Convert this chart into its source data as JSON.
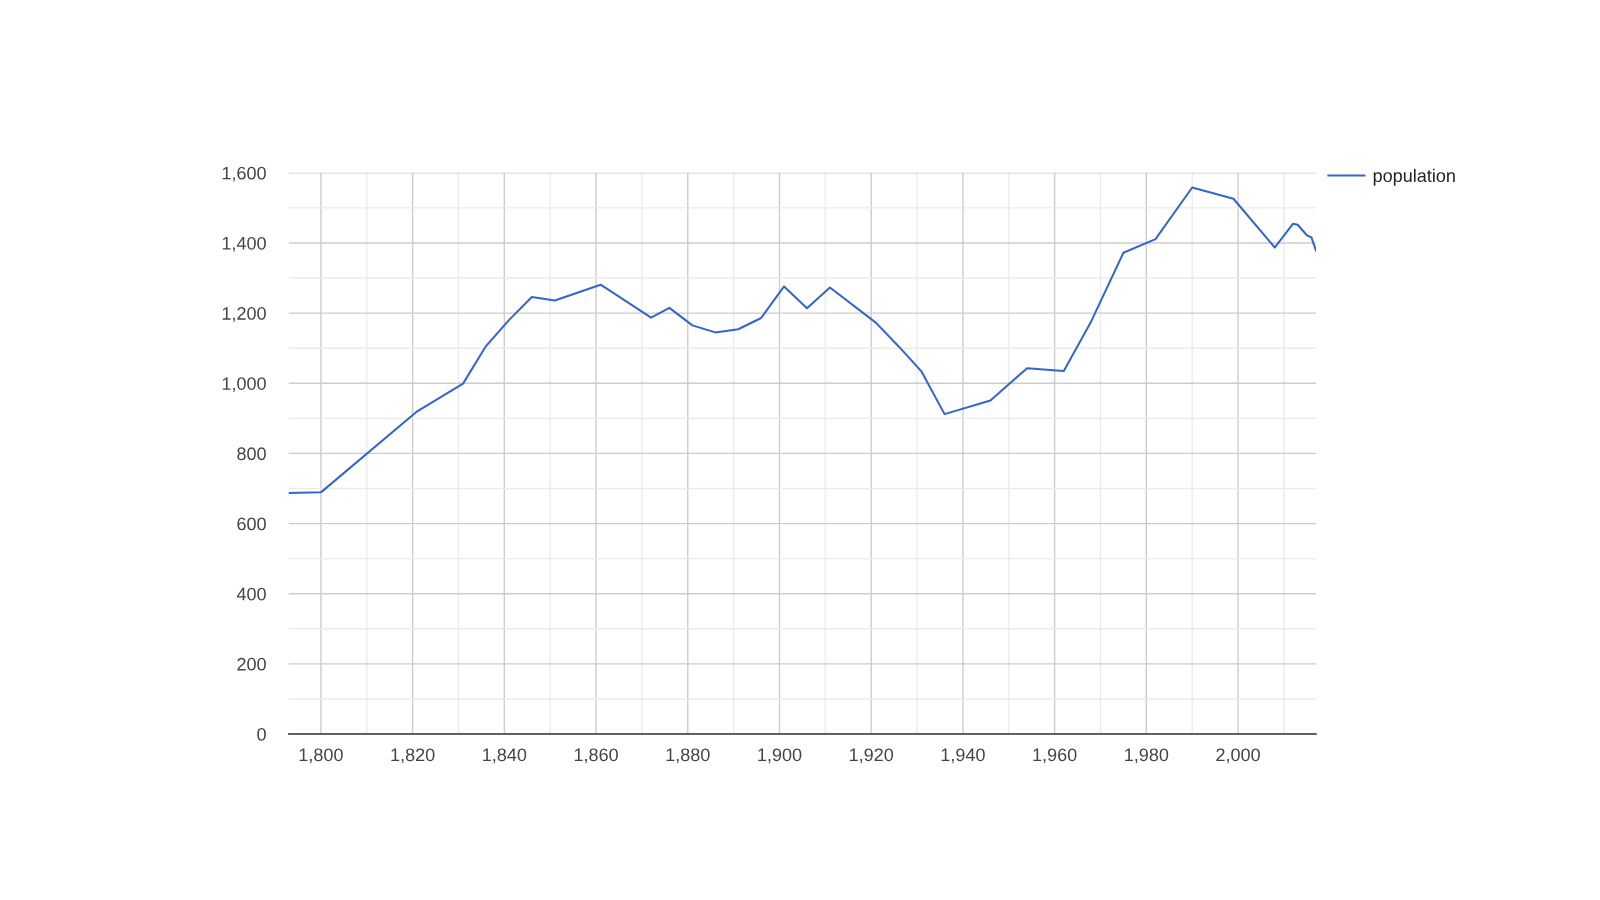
{
  "chart_data": {
    "type": "line",
    "x": [
      1793,
      1800,
      1821,
      1831,
      1836,
      1841,
      1846,
      1851,
      1861,
      1872,
      1876,
      1881,
      1886,
      1891,
      1896,
      1901,
      1906,
      1911,
      1921,
      1926,
      1931,
      1936,
      1946,
      1954,
      1962,
      1968,
      1975,
      1982,
      1990,
      1999,
      2008,
      2012,
      2013,
      2015,
      2016,
      2017
    ],
    "series": [
      {
        "name": "population",
        "color": "#3366cc",
        "values": [
          687,
          689,
          920,
          999,
          1106,
          1180,
          1246,
          1236,
          1281,
          1187,
          1215,
          1165,
          1145,
          1154,
          1186,
          1276,
          1214,
          1273,
          1173,
          1105,
          1033,
          912,
          951,
          1043,
          1035,
          1177,
          1372,
          1411,
          1558,
          1526,
          1387,
          1455,
          1452,
          1422,
          1416,
          1378
        ]
      }
    ],
    "xlim": [
      1793,
      2017
    ],
    "ylim": [
      0,
      1600
    ],
    "xticks": [
      {
        "value": 1800,
        "label": "1,800"
      },
      {
        "value": 1810,
        "label": null
      },
      {
        "value": 1820,
        "label": "1,820"
      },
      {
        "value": 1830,
        "label": null
      },
      {
        "value": 1840,
        "label": "1,840"
      },
      {
        "value": 1850,
        "label": null
      },
      {
        "value": 1860,
        "label": "1,860"
      },
      {
        "value": 1870,
        "label": null
      },
      {
        "value": 1880,
        "label": "1,880"
      },
      {
        "value": 1890,
        "label": null
      },
      {
        "value": 1900,
        "label": "1,900"
      },
      {
        "value": 1910,
        "label": null
      },
      {
        "value": 1920,
        "label": "1,920"
      },
      {
        "value": 1930,
        "label": null
      },
      {
        "value": 1940,
        "label": "1,940"
      },
      {
        "value": 1950,
        "label": null
      },
      {
        "value": 1960,
        "label": "1,960"
      },
      {
        "value": 1970,
        "label": null
      },
      {
        "value": 1980,
        "label": "1,980"
      },
      {
        "value": 1990,
        "label": null
      },
      {
        "value": 2000,
        "label": "2,000"
      },
      {
        "value": 2010,
        "label": null
      }
    ],
    "yticks": [
      0,
      {
        "value": 100,
        "label": null
      },
      200,
      {
        "value": 300,
        "label": null
      },
      400,
      {
        "value": 500,
        "label": null
      },
      600,
      {
        "value": 700,
        "label": null
      },
      800,
      {
        "value": 900,
        "label": null
      },
      {
        "value": 1000,
        "label": "1,000"
      },
      {
        "value": 1100,
        "label": null
      },
      {
        "value": 1200,
        "label": "1,200"
      },
      {
        "value": 1300,
        "label": null
      },
      {
        "value": 1400,
        "label": "1,400"
      },
      {
        "value": 1500,
        "label": null
      },
      {
        "value": 1600,
        "label": "1,600"
      }
    ],
    "grid": true,
    "legend": "top right",
    "marker": "none",
    "line_style": "solid"
  }
}
